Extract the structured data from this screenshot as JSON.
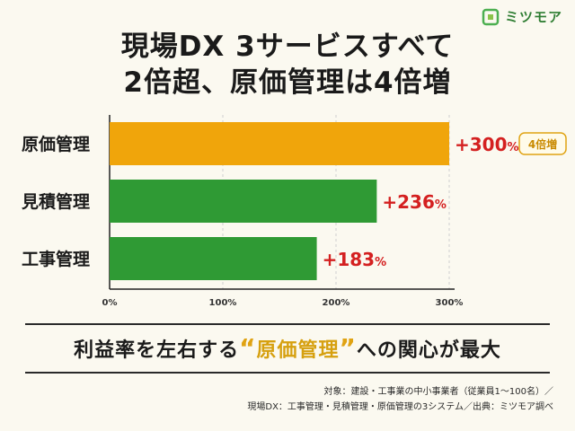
{
  "brand": {
    "name": "ミツモア"
  },
  "title": {
    "line1": "現場DX 3サービスすべて",
    "line2": "2倍超、原価管理は4倍増"
  },
  "chart_data": {
    "type": "bar",
    "orientation": "horizontal",
    "categories": [
      "原価管理",
      "見積管理",
      "工事管理"
    ],
    "values": [
      300,
      236,
      183
    ],
    "value_labels": [
      "+300%",
      "+236%",
      "+183%"
    ],
    "xlim": [
      0,
      300
    ],
    "xticks": [
      0,
      100,
      200,
      300
    ],
    "xtick_labels": [
      "0%",
      "100%",
      "200%",
      "300%"
    ],
    "badge": {
      "category": "原価管理",
      "text": "4倍増"
    },
    "grid": "vertical-dashed",
    "colors": {
      "highlight": "#f0a50b",
      "bar": "#2f9a34",
      "label": "#d42020",
      "badge": "#e0a313"
    }
  },
  "tagline": {
    "prefix": "利益率を左右する",
    "open_quote": "“",
    "highlight": "原価管理",
    "close_quote": "”",
    "suffix": "への関心が最大"
  },
  "notes": {
    "line1": "対象：建設・工事業の中小事業者（従業員1～100名）／",
    "line2": "現場DX：工事管理・見積管理・原価管理の3システム／出典：ミツモア調べ"
  }
}
